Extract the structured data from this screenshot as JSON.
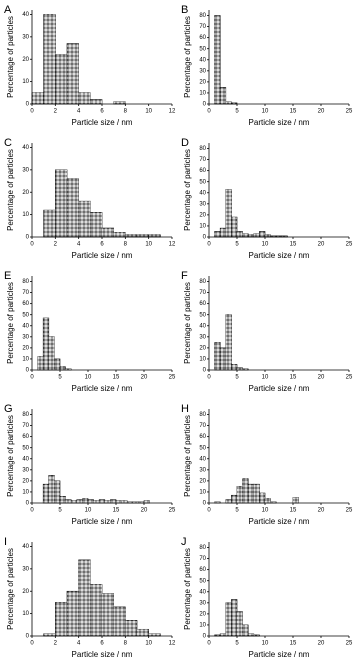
{
  "chart_data": [
    {
      "type": "histogram",
      "panel": "A",
      "xlabel": "Particle size / nm",
      "ylabel": "Percentage of particles",
      "color": "#6e6e6e",
      "bins": [
        0,
        1,
        2,
        3,
        4,
        5,
        6,
        7,
        8
      ],
      "counts": [
        5,
        40,
        22,
        27,
        5,
        2,
        0,
        1
      ],
      "xlim": [
        0,
        12
      ],
      "ylim": [
        0,
        42
      ],
      "xticks": [
        0,
        2,
        4,
        6,
        8,
        10,
        12
      ],
      "yticks": [
        0,
        10,
        20,
        30,
        40
      ]
    },
    {
      "type": "histogram",
      "panel": "B",
      "xlabel": "Particle size / nm",
      "ylabel": "Percentage of particles",
      "color": "#6e6e6e",
      "bins": [
        1,
        2,
        3,
        4,
        5
      ],
      "counts": [
        80,
        15,
        2,
        1
      ],
      "xlim": [
        0,
        25
      ],
      "ylim": [
        0,
        85
      ],
      "xticks": [
        0,
        5,
        10,
        15,
        20,
        25
      ],
      "yticks": [
        0,
        10,
        20,
        30,
        40,
        50,
        60,
        70,
        80
      ]
    },
    {
      "type": "histogram",
      "panel": "C",
      "xlabel": "Particle size / nm",
      "ylabel": "Percentage of particles",
      "color": "#6e6e6e",
      "bins": [
        1,
        2,
        3,
        4,
        5,
        6,
        7,
        8,
        9,
        10,
        11
      ],
      "counts": [
        12,
        30,
        26,
        16,
        11,
        4,
        2,
        1,
        1,
        1
      ],
      "xlim": [
        0,
        12
      ],
      "ylim": [
        0,
        42
      ],
      "xticks": [
        0,
        2,
        4,
        6,
        8,
        10,
        12
      ],
      "yticks": [
        0,
        10,
        20,
        30,
        40
      ]
    },
    {
      "type": "histogram",
      "panel": "D",
      "xlabel": "Particle size / nm",
      "ylabel": "Percentage of particles",
      "color": "#6e6e6e",
      "bins": [
        1,
        2,
        3,
        4,
        5,
        6,
        7,
        8,
        9,
        10,
        11,
        12,
        13,
        14
      ],
      "counts": [
        5,
        8,
        43,
        18,
        5,
        3,
        2,
        3,
        5,
        2,
        1,
        1,
        1
      ],
      "xlim": [
        0,
        25
      ],
      "ylim": [
        0,
        85
      ],
      "xticks": [
        0,
        5,
        10,
        15,
        20,
        25
      ],
      "yticks": [
        0,
        10,
        20,
        30,
        40,
        50,
        60,
        70,
        80
      ]
    },
    {
      "type": "histogram",
      "panel": "E",
      "xlabel": "Particle size / nm",
      "ylabel": "Percentage of particles",
      "color": "#6e6e6e",
      "bins": [
        1,
        2,
        3,
        4,
        5,
        6,
        7
      ],
      "counts": [
        12,
        47,
        30,
        10,
        3,
        1
      ],
      "xlim": [
        0,
        25
      ],
      "ylim": [
        0,
        85
      ],
      "xticks": [
        0,
        5,
        10,
        15,
        20,
        25
      ],
      "yticks": [
        0,
        10,
        20,
        30,
        40,
        50,
        60,
        70,
        80
      ]
    },
    {
      "type": "histogram",
      "panel": "F",
      "xlabel": "Particle size / nm",
      "ylabel": "Percentage of particles",
      "color": "#6e6e6e",
      "bins": [
        1,
        2,
        3,
        4,
        5,
        6,
        7
      ],
      "counts": [
        25,
        20,
        50,
        5,
        2,
        1
      ],
      "xlim": [
        0,
        25
      ],
      "ylim": [
        0,
        85
      ],
      "xticks": [
        0,
        5,
        10,
        15,
        20,
        25
      ],
      "yticks": [
        0,
        10,
        20,
        30,
        40,
        50,
        60,
        70,
        80
      ]
    },
    {
      "type": "histogram",
      "panel": "G",
      "xlabel": "Particle size / nm",
      "ylabel": "Percentage of particles",
      "color": "#6e6e6e",
      "bins": [
        2,
        3,
        4,
        5,
        6,
        7,
        8,
        9,
        10,
        11,
        12,
        13,
        14,
        15,
        16,
        17,
        18,
        19,
        20,
        21
      ],
      "counts": [
        17,
        25,
        20,
        6,
        3,
        2,
        3,
        4,
        3,
        2,
        3,
        2,
        3,
        2,
        2,
        1,
        1,
        1,
        2
      ],
      "xlim": [
        0,
        25
      ],
      "ylim": [
        0,
        85
      ],
      "xticks": [
        0,
        5,
        10,
        15,
        20,
        25
      ],
      "yticks": [
        0,
        10,
        20,
        30,
        40,
        50,
        60,
        70,
        80
      ]
    },
    {
      "type": "histogram",
      "panel": "H",
      "xlabel": "Particle size / nm",
      "ylabel": "Percentage of particles",
      "color": "#6e6e6e",
      "bins": [
        1,
        2,
        3,
        4,
        5,
        6,
        7,
        8,
        9,
        10,
        11,
        12,
        13,
        14,
        15,
        16
      ],
      "counts": [
        1,
        0,
        3,
        7,
        15,
        22,
        17,
        17,
        9,
        4,
        1,
        0,
        0,
        0,
        5
      ],
      "xlim": [
        0,
        25
      ],
      "ylim": [
        0,
        85
      ],
      "xticks": [
        0,
        5,
        10,
        15,
        20,
        25
      ],
      "yticks": [
        0,
        10,
        20,
        30,
        40,
        50,
        60,
        70,
        80
      ]
    },
    {
      "type": "histogram",
      "panel": "I",
      "xlabel": "Particle size / nm",
      "ylabel": "Percentage of particles",
      "color": "#6e6e6e",
      "bins": [
        1,
        2,
        3,
        4,
        5,
        6,
        7,
        8,
        9,
        10,
        11
      ],
      "counts": [
        1,
        15,
        20,
        34,
        23,
        19,
        13,
        7,
        3,
        1
      ],
      "xlim": [
        0,
        12
      ],
      "ylim": [
        0,
        42
      ],
      "xticks": [
        0,
        2,
        4,
        6,
        8,
        10,
        12
      ],
      "yticks": [
        0,
        10,
        20,
        30,
        40
      ]
    },
    {
      "type": "histogram",
      "panel": "J",
      "xlabel": "Particle size / nm",
      "ylabel": "Percentage of particles",
      "color": "#6e6e6e",
      "bins": [
        1,
        2,
        3,
        4,
        5,
        6,
        7,
        8,
        9
      ],
      "counts": [
        1,
        2,
        30,
        33,
        22,
        10,
        2,
        1
      ],
      "xlim": [
        0,
        25
      ],
      "ylim": [
        0,
        85
      ],
      "xticks": [
        0,
        5,
        10,
        15,
        20,
        25
      ],
      "yticks": [
        0,
        10,
        20,
        30,
        40,
        50,
        60,
        70,
        80
      ]
    }
  ]
}
